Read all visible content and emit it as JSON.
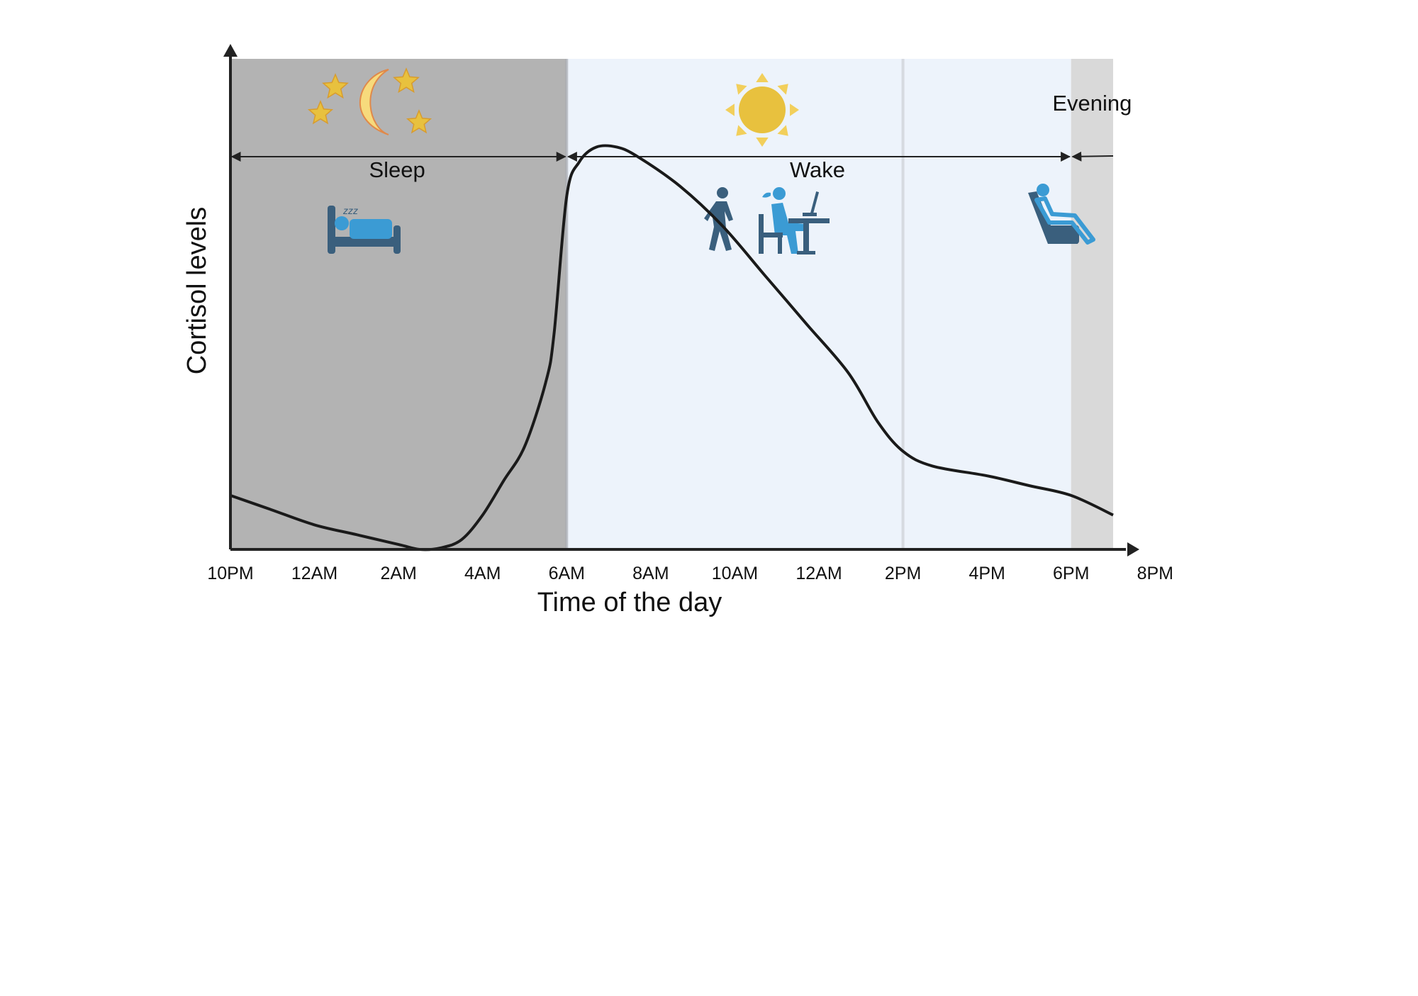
{
  "chart_data": {
    "type": "line",
    "ylabel": "Cortisol levels",
    "xlabel": "Time of the day",
    "x_ticks": [
      "10PM",
      "12AM",
      "2AM",
      "4AM",
      "6AM",
      "8AM",
      "10AM",
      "12AM",
      "2PM",
      "4PM",
      "6PM",
      "8PM"
    ],
    "phases": [
      {
        "label": "Sleep",
        "start": "10PM",
        "end": "6AM",
        "color": "#b3b3b3",
        "icons": [
          "moon-stars-icon",
          "sleeping-bed-icon"
        ]
      },
      {
        "label": "Wake",
        "start": "6AM",
        "end": "6PM",
        "color": "#edf3fb",
        "icons": [
          "sun-icon",
          "walking-person-icon",
          "desk-worker-icon"
        ]
      },
      {
        "label": "Evening",
        "start": "6PM",
        "end": "9PM",
        "color": "#d9d9d9",
        "icons": [
          "reclining-chair-icon"
        ]
      }
    ],
    "series": [
      {
        "color": "#1a1a1a",
        "points": [
          [
            0,
            0.11
          ],
          [
            1,
            0.08
          ],
          [
            2,
            0.05
          ],
          [
            3,
            0.03
          ],
          [
            4,
            0.01
          ],
          [
            4.5,
            0.0
          ],
          [
            5,
            0.003
          ],
          [
            5.5,
            0.02
          ],
          [
            6,
            0.07
          ],
          [
            6.5,
            0.14
          ],
          [
            7,
            0.21
          ],
          [
            7.5,
            0.34
          ],
          [
            7.7,
            0.44
          ],
          [
            8,
            0.72
          ],
          [
            8.3,
            0.79
          ],
          [
            8.7,
            0.82
          ],
          [
            9.2,
            0.82
          ],
          [
            9.7,
            0.8
          ],
          [
            10.7,
            0.74
          ],
          [
            11.7,
            0.66
          ],
          [
            12.7,
            0.56
          ],
          [
            13.7,
            0.46
          ],
          [
            14.7,
            0.36
          ],
          [
            15.4,
            0.26
          ],
          [
            16.0,
            0.2
          ],
          [
            16.7,
            0.17
          ],
          [
            18.0,
            0.15
          ],
          [
            19.0,
            0.13
          ],
          [
            20.0,
            0.11
          ],
          [
            21.0,
            0.07
          ]
        ]
      }
    ],
    "xlim": [
      0,
      21
    ],
    "ylim": [
      0,
      1
    ]
  },
  "colors": {
    "axis": "#222222",
    "icon_dark": "#3a5f7d",
    "icon_light": "#3b9bd4",
    "sun": "#e8c13e",
    "moon": "#f7da7c",
    "moon_stroke": "#e0894a"
  }
}
